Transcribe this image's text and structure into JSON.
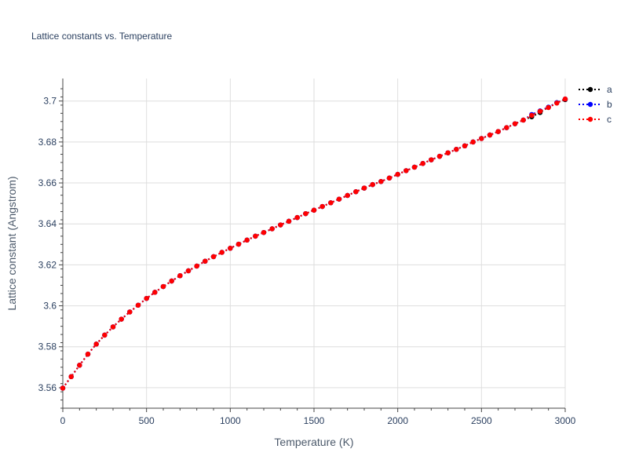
{
  "chart_data": {
    "type": "line",
    "title": "Lattice constants vs. Temperature",
    "xlabel": "Temperature (K)",
    "ylabel": "Lattice constant (Angstrom)",
    "xlim": [
      0,
      3000
    ],
    "ylim": [
      3.55,
      3.711
    ],
    "x_ticks": [
      0,
      500,
      1000,
      1500,
      2000,
      2500,
      3000
    ],
    "x_tick_labels": [
      "0",
      "500",
      "1000",
      "1500",
      "2000",
      "2500",
      "3000"
    ],
    "y_ticks": [
      3.56,
      3.58,
      3.6,
      3.62,
      3.64,
      3.66,
      3.68,
      3.7
    ],
    "y_tick_labels": [
      "3.56",
      "3.58",
      "3.6",
      "3.62",
      "3.64",
      "3.66",
      "3.68",
      "3.7"
    ],
    "grid": true,
    "legend_position": "top-right",
    "line_style": "dotted with circle markers",
    "x": [
      0,
      50,
      100,
      150,
      200,
      250,
      300,
      350,
      400,
      450,
      500,
      550,
      600,
      650,
      700,
      750,
      800,
      850,
      900,
      950,
      1000,
      1050,
      1100,
      1150,
      1200,
      1250,
      1300,
      1350,
      1400,
      1450,
      1500,
      1550,
      1600,
      1650,
      1700,
      1750,
      1800,
      1850,
      1900,
      1950,
      2000,
      2050,
      2100,
      2150,
      2200,
      2250,
      2300,
      2350,
      2400,
      2450,
      2500,
      2550,
      2600,
      2650,
      2700,
      2750,
      2800,
      2850,
      2900,
      2950,
      3000
    ],
    "series": [
      {
        "name": "a",
        "color": "#000000",
        "values": [
          3.5598,
          3.5654,
          3.571,
          3.5764,
          3.5813,
          3.5857,
          3.5897,
          3.5935,
          3.597,
          3.6003,
          3.6036,
          3.6066,
          3.6094,
          3.6121,
          3.6147,
          3.6171,
          3.6194,
          3.6218,
          3.624,
          3.6261,
          3.6281,
          3.6301,
          3.6321,
          3.634,
          3.6358,
          3.6376,
          3.6395,
          3.6413,
          3.6431,
          3.645,
          3.6467,
          3.6485,
          3.6503,
          3.6521,
          3.6539,
          3.6557,
          3.6575,
          3.6592,
          3.6607,
          3.6624,
          3.6642,
          3.666,
          3.6677,
          3.6695,
          3.6713,
          3.673,
          3.6747,
          3.6764,
          3.6781,
          3.68,
          3.6817,
          3.6834,
          3.6851,
          3.687,
          3.6889,
          3.6907,
          3.6923,
          3.6944,
          3.697,
          3.6992,
          3.7007
        ]
      },
      {
        "name": "b",
        "color": "#0000ff",
        "values": [
          3.5598,
          3.5654,
          3.571,
          3.5764,
          3.5813,
          3.5857,
          3.5897,
          3.5935,
          3.597,
          3.6003,
          3.6036,
          3.6066,
          3.6094,
          3.6121,
          3.6147,
          3.6171,
          3.6194,
          3.6218,
          3.624,
          3.6261,
          3.6281,
          3.6301,
          3.6321,
          3.634,
          3.6358,
          3.6376,
          3.6395,
          3.6413,
          3.6431,
          3.645,
          3.6467,
          3.6485,
          3.6503,
          3.6521,
          3.6539,
          3.6557,
          3.6575,
          3.6592,
          3.6607,
          3.6624,
          3.6642,
          3.666,
          3.6677,
          3.6695,
          3.6713,
          3.673,
          3.6747,
          3.6764,
          3.6781,
          3.68,
          3.6817,
          3.6834,
          3.6851,
          3.687,
          3.6889,
          3.6907,
          3.6934,
          3.6952,
          3.697,
          3.6992,
          3.701
        ]
      },
      {
        "name": "c",
        "color": "#ff0000",
        "values": [
          3.5598,
          3.5654,
          3.571,
          3.5764,
          3.5813,
          3.5857,
          3.5897,
          3.5935,
          3.597,
          3.6003,
          3.6036,
          3.6066,
          3.6094,
          3.6121,
          3.6147,
          3.6171,
          3.6194,
          3.6218,
          3.624,
          3.6261,
          3.6281,
          3.6301,
          3.6321,
          3.634,
          3.6358,
          3.6376,
          3.6395,
          3.6413,
          3.6431,
          3.645,
          3.6467,
          3.6485,
          3.6503,
          3.6521,
          3.6539,
          3.6557,
          3.6575,
          3.6592,
          3.6607,
          3.6624,
          3.6642,
          3.666,
          3.6677,
          3.6695,
          3.6713,
          3.673,
          3.6747,
          3.6764,
          3.6781,
          3.68,
          3.6817,
          3.6834,
          3.6851,
          3.687,
          3.6889,
          3.6907,
          3.693,
          3.695,
          3.6968,
          3.699,
          3.701
        ]
      }
    ]
  }
}
